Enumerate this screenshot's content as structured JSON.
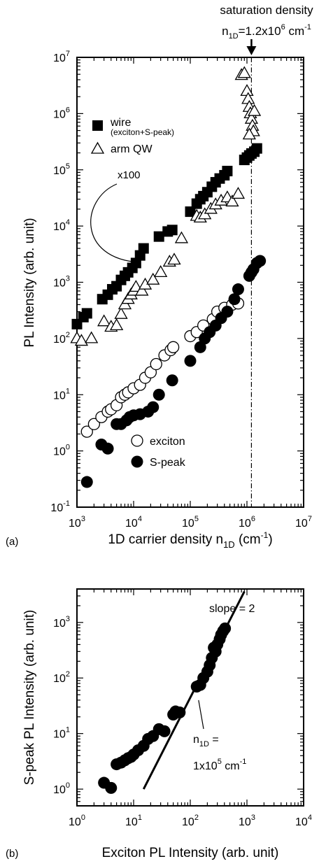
{
  "chart_data": [
    {
      "type": "scatter",
      "panel_label": "(a)",
      "xlabel": "1D carrier density n",
      "xlabel_sub": "1D",
      "xlabel_units": "(cm",
      "xlabel_units_sup": "-1",
      "xlabel_units_close": ")",
      "ylabel": "PL Intensity (arb. unit)",
      "x_scale": "log",
      "y_scale": "log",
      "xlim": [
        1000,
        10000000
      ],
      "ylim": [
        0.1,
        10000000
      ],
      "x_ticks": [
        {
          "value": 1000,
          "base": "10",
          "exp": "3"
        },
        {
          "value": 10000,
          "base": "10",
          "exp": "4"
        },
        {
          "value": 100000,
          "base": "10",
          "exp": "5"
        },
        {
          "value": 1000000,
          "base": "10",
          "exp": "6"
        },
        {
          "value": 10000000,
          "base": "10",
          "exp": "7"
        }
      ],
      "y_ticks": [
        {
          "value": 0.1,
          "base": "10",
          "exp": "-1"
        },
        {
          "value": 1,
          "base": "10",
          "exp": "0"
        },
        {
          "value": 10,
          "base": "10",
          "exp": "1"
        },
        {
          "value": 100,
          "base": "10",
          "exp": "2"
        },
        {
          "value": 1000,
          "base": "10",
          "exp": "3"
        },
        {
          "value": 10000,
          "base": "10",
          "exp": "4"
        },
        {
          "value": 100000,
          "base": "10",
          "exp": "5"
        },
        {
          "value": 1000000,
          "base": "10",
          "exp": "6"
        },
        {
          "value": 10000000,
          "base": "10",
          "exp": "7"
        }
      ],
      "annotations": {
        "saturation_title": "saturation density",
        "saturation_formula": {
          "n": "n",
          "sub": "1D",
          "eq": "=1.2x10",
          "sup": "6",
          "unit": " cm",
          "unit_sup": "-1"
        },
        "saturation_x": 1200000,
        "scale_note": "x100"
      },
      "legend": [
        {
          "name": "wire",
          "detail": "(exciton+S-peak)",
          "marker": "filled-square"
        },
        {
          "name": "arm QW",
          "marker": "open-triangle"
        },
        {
          "name": "exciton",
          "marker": "open-circle"
        },
        {
          "name": "S-peak",
          "marker": "filled-circle"
        }
      ],
      "series": [
        {
          "name": "wire",
          "marker": "filled-square",
          "points": [
            [
              1000,
              180
            ],
            [
              1300,
              240
            ],
            [
              1500,
              280
            ],
            [
              2800,
              500
            ],
            [
              3500,
              600
            ],
            [
              4200,
              750
            ],
            [
              5000,
              850
            ],
            [
              6000,
              1100
            ],
            [
              7000,
              1300
            ],
            [
              8000,
              1500
            ],
            [
              9500,
              1800
            ],
            [
              11000,
              2200
            ],
            [
              13000,
              3000
            ],
            [
              15000,
              4000
            ],
            [
              28000,
              6500
            ],
            [
              40000,
              8000
            ],
            [
              48000,
              8500
            ],
            [
              100000,
              18000
            ],
            [
              130000,
              25000
            ],
            [
              150000,
              30000
            ],
            [
              170000,
              34000
            ],
            [
              200000,
              40000
            ],
            [
              240000,
              50000
            ],
            [
              280000,
              60000
            ],
            [
              330000,
              70000
            ],
            [
              400000,
              80000
            ],
            [
              450000,
              95000
            ],
            [
              900000,
              150000
            ],
            [
              1000000,
              165000
            ],
            [
              1100000,
              180000
            ],
            [
              1200000,
              195000
            ],
            [
              1350000,
              210000
            ],
            [
              1500000,
              240000
            ]
          ]
        },
        {
          "name": "arm QW",
          "marker": "open-triangle",
          "points": [
            [
              1000,
              100
            ],
            [
              1200,
              90
            ],
            [
              1800,
              100
            ],
            [
              3000,
              200
            ],
            [
              4000,
              160
            ],
            [
              5000,
              170
            ],
            [
              6000,
              270
            ],
            [
              7000,
              400
            ],
            [
              8000,
              500
            ],
            [
              9000,
              600
            ],
            [
              10000,
              700
            ],
            [
              11000,
              820
            ],
            [
              14000,
              700
            ],
            [
              16000,
              900
            ],
            [
              22000,
              1100
            ],
            [
              30000,
              1500
            ],
            [
              43000,
              2300
            ],
            [
              52000,
              2500
            ],
            [
              70000,
              6000
            ],
            [
              130000,
              15000
            ],
            [
              150000,
              14000
            ],
            [
              180000,
              16000
            ],
            [
              230000,
              20000
            ],
            [
              280000,
              24000
            ],
            [
              350000,
              28000
            ],
            [
              450000,
              32000
            ],
            [
              550000,
              27000
            ],
            [
              700000,
              37000
            ],
            [
              800000,
              4800000
            ],
            [
              900000,
              5200000
            ],
            [
              1000000,
              2500000
            ],
            [
              1050000,
              1800000
            ],
            [
              1100000,
              1300000
            ],
            [
              1150000,
              1000000
            ],
            [
              1200000,
              800000
            ],
            [
              1250000,
              600000
            ],
            [
              1300000,
              480000
            ],
            [
              1100000,
              420000
            ],
            [
              1350000,
              1100000
            ]
          ]
        },
        {
          "name": "exciton",
          "marker": "open-circle",
          "points": [
            [
              1500,
              2.2
            ],
            [
              2000,
              3
            ],
            [
              2700,
              4
            ],
            [
              3500,
              5
            ],
            [
              4000,
              5.5
            ],
            [
              5000,
              6.5
            ],
            [
              6000,
              9
            ],
            [
              7000,
              10
            ],
            [
              8000,
              11
            ],
            [
              10000,
              13
            ],
            [
              13000,
              15
            ],
            [
              16000,
              20
            ],
            [
              20000,
              25
            ],
            [
              25000,
              35
            ],
            [
              35000,
              50
            ],
            [
              45000,
              62
            ],
            [
              50000,
              70
            ],
            [
              100000,
              110
            ],
            [
              130000,
              130
            ],
            [
              170000,
              170
            ],
            [
              250000,
              220
            ],
            [
              300000,
              300
            ],
            [
              400000,
              350
            ],
            [
              550000,
              400
            ],
            [
              700000,
              420
            ]
          ]
        },
        {
          "name": "S-peak",
          "marker": "filled-circle",
          "points": [
            [
              1500,
              0.28
            ],
            [
              2700,
              1.3
            ],
            [
              3500,
              1.1
            ],
            [
              5000,
              3
            ],
            [
              6000,
              3
            ],
            [
              7500,
              3.5
            ],
            [
              8500,
              4
            ],
            [
              10000,
              4.3
            ],
            [
              13000,
              4.5
            ],
            [
              18000,
              5
            ],
            [
              22000,
              6
            ],
            [
              28000,
              10
            ],
            [
              48000,
              18
            ],
            [
              100000,
              40
            ],
            [
              150000,
              70
            ],
            [
              180000,
              100
            ],
            [
              220000,
              130
            ],
            [
              280000,
              170
            ],
            [
              350000,
              230
            ],
            [
              450000,
              300
            ],
            [
              600000,
              500
            ],
            [
              700000,
              750
            ],
            [
              1100000,
              1300
            ],
            [
              1200000,
              1500
            ],
            [
              1300000,
              1700
            ],
            [
              1500000,
              2200
            ],
            [
              1700000,
              2400
            ]
          ]
        }
      ]
    },
    {
      "type": "scatter",
      "panel_label": "(b)",
      "xlabel": "Exciton PL Intensity (arb. unit)",
      "ylabel": "S-peak PL Intensity (arb. unit)",
      "x_scale": "log",
      "y_scale": "log",
      "xlim": [
        1,
        10000
      ],
      "ylim": [
        0.5,
        4000
      ],
      "x_ticks": [
        {
          "value": 1,
          "base": "10",
          "exp": "0"
        },
        {
          "value": 10,
          "base": "10",
          "exp": "1"
        },
        {
          "value": 100,
          "base": "10",
          "exp": "2"
        },
        {
          "value": 1000,
          "base": "10",
          "exp": "3"
        },
        {
          "value": 10000,
          "base": "10",
          "exp": "4"
        }
      ],
      "y_ticks": [
        {
          "value": 1,
          "base": "10",
          "exp": "0"
        },
        {
          "value": 10,
          "base": "10",
          "exp": "1"
        },
        {
          "value": 100,
          "base": "10",
          "exp": "2"
        },
        {
          "value": 1000,
          "base": "10",
          "exp": "3"
        }
      ],
      "annotations": {
        "slope_label": "slope = 2",
        "slope_line": [
          [
            15,
            1
          ],
          [
            900,
            3600
          ]
        ],
        "density_note": {
          "line1_n": "n",
          "line1_sub": "1D",
          "line1_eq": " =",
          "line2_pre": "1x10",
          "line2_sup": "5",
          "line2_unit": " cm",
          "line2_unit_sup": "-1"
        },
        "density_point": [
          140,
          40
        ]
      },
      "series": [
        {
          "name": "",
          "marker": "filled-circle",
          "points": [
            [
              3,
              1.3
            ],
            [
              4,
              1.05
            ],
            [
              5,
              2.8
            ],
            [
              6,
              3
            ],
            [
              7,
              3.3
            ],
            [
              8,
              3.6
            ],
            [
              9,
              3.8
            ],
            [
              10,
              4.2
            ],
            [
              12,
              5
            ],
            [
              15,
              6
            ],
            [
              18,
              8
            ],
            [
              22,
              9
            ],
            [
              28,
              12
            ],
            [
              35,
              11
            ],
            [
              50,
              22
            ],
            [
              55,
              25
            ],
            [
              65,
              24
            ],
            [
              130,
              70
            ],
            [
              150,
              75
            ],
            [
              170,
              100
            ],
            [
              200,
              130
            ],
            [
              220,
              170
            ],
            [
              240,
              230
            ],
            [
              260,
              350
            ],
            [
              280,
              300
            ],
            [
              300,
              400
            ],
            [
              330,
              500
            ],
            [
              350,
              600
            ],
            [
              380,
              700
            ],
            [
              410,
              780
            ]
          ]
        }
      ]
    }
  ]
}
